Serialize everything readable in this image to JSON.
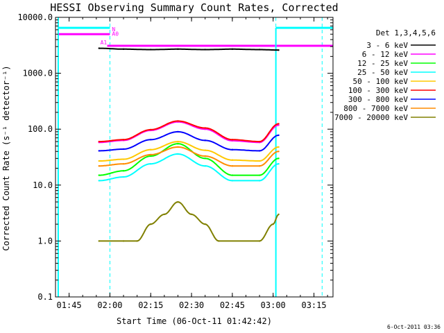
{
  "chart_data": {
    "type": "line",
    "title": "HESSI Observing Summary Count Rates, Corrected",
    "xlabel": "Start Time (06-Oct-11 01:42:42)",
    "ylabel": "Corrected Count Rate (s⁻¹ detector⁻¹)",
    "yscale": "log",
    "ylim": [
      0.1,
      10000.0
    ],
    "xlim": [
      "01:40",
      "03:22"
    ],
    "x_ticks": [
      "01:45",
      "02:00",
      "02:15",
      "02:30",
      "02:45",
      "03:00",
      "03:15"
    ],
    "y_ticks": [
      "10000.0",
      "1000.0",
      "100.0",
      "10.0",
      "1.0",
      "0.1"
    ],
    "legend_title": "Det 1,3,4,5,6",
    "legend_position": "right",
    "footer": "6-Oct-2011 03:36",
    "series": [
      {
        "name": "3 - 6 keV",
        "color": "#000000",
        "x": [
          "01:56",
          "02:05",
          "02:15",
          "02:25",
          "02:35",
          "02:45",
          "02:55",
          "03:02"
        ],
        "y": [
          2800,
          2700,
          2650,
          2700,
          2650,
          2700,
          2650,
          2600
        ]
      },
      {
        "name": "6 - 12 keV",
        "color": "#ff00ff",
        "x": [
          "01:56",
          "02:05",
          "02:15",
          "02:25",
          "02:35",
          "02:45",
          "02:55",
          "03:02"
        ],
        "y": [
          58,
          63,
          95,
          135,
          100,
          62,
          58,
          118
        ]
      },
      {
        "name": "12 - 25 keV",
        "color": "#00ff00",
        "x": [
          "01:56",
          "02:05",
          "02:15",
          "02:25",
          "02:35",
          "02:45",
          "02:55",
          "03:02"
        ],
        "y": [
          15,
          18,
          33,
          55,
          30,
          15,
          15,
          30
        ]
      },
      {
        "name": "25 - 50 keV",
        "color": "#00ffff",
        "x": [
          "01:56",
          "02:05",
          "02:15",
          "02:25",
          "02:35",
          "02:45",
          "02:55",
          "03:02"
        ],
        "y": [
          12,
          14,
          24,
          36,
          22,
          12,
          12,
          24
        ]
      },
      {
        "name": "50 - 100 keV",
        "color": "#ffc800",
        "x": [
          "01:56",
          "02:05",
          "02:15",
          "02:25",
          "02:35",
          "02:45",
          "02:55",
          "03:02"
        ],
        "y": [
          27,
          29,
          43,
          60,
          42,
          28,
          27,
          48
        ]
      },
      {
        "name": "100 - 300 keV",
        "color": "#ff0000",
        "x": [
          "01:56",
          "02:05",
          "02:15",
          "02:25",
          "02:35",
          "02:45",
          "02:55",
          "03:02"
        ],
        "y": [
          60,
          65,
          98,
          140,
          105,
          65,
          60,
          125
        ]
      },
      {
        "name": "300 - 800 keV",
        "color": "#0000ff",
        "x": [
          "01:56",
          "02:05",
          "02:15",
          "02:25",
          "02:35",
          "02:45",
          "02:55",
          "03:02"
        ],
        "y": [
          41,
          44,
          65,
          90,
          63,
          43,
          41,
          78
        ]
      },
      {
        "name": "800 - 7000 keV",
        "color": "#ff8c00",
        "x": [
          "01:56",
          "02:05",
          "02:15",
          "02:25",
          "02:35",
          "02:45",
          "02:55",
          "03:02"
        ],
        "y": [
          22,
          24,
          35,
          48,
          33,
          22,
          22,
          40
        ]
      },
      {
        "name": "7000 - 20000 keV",
        "color": "#808000",
        "x": [
          "01:56",
          "02:05",
          "02:10",
          "02:15",
          "02:20",
          "02:25",
          "02:30",
          "02:35",
          "02:40",
          "02:55",
          "03:00",
          "03:02"
        ],
        "y": [
          1.0,
          1.0,
          1.0,
          2.0,
          3.0,
          5.0,
          3.0,
          2.0,
          1.0,
          1.0,
          2.0,
          3.0
        ]
      }
    ],
    "attenuator": {
      "labels": [
        "N",
        "A0",
        "A1"
      ],
      "color_cyan": "#00ffff",
      "color_magenta": "#ff00ff",
      "levels": {
        "N": 6500,
        "A0": 5000,
        "A1": 3100
      }
    },
    "night_boundaries": [
      "01:41",
      "02:00",
      "03:01",
      "03:18"
    ]
  }
}
